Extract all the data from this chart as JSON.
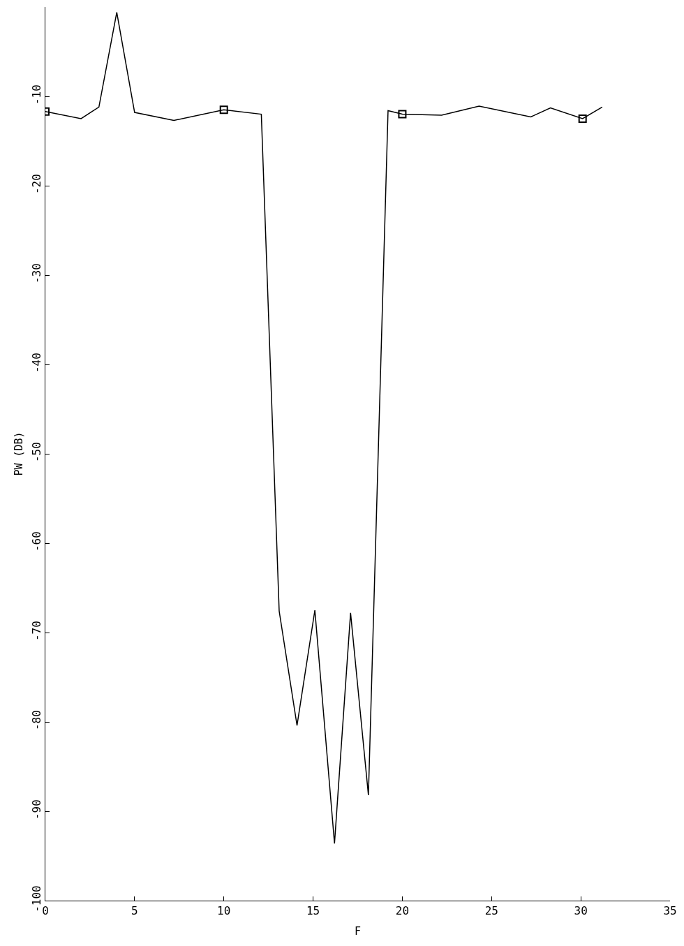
{
  "chart_data": {
    "type": "line",
    "xlabel": "F",
    "ylabel": "PW (DB)",
    "xlim": [
      0,
      35
    ],
    "xticks": [
      0,
      5,
      10,
      15,
      20,
      25,
      30,
      35
    ],
    "ylim": [
      -100,
      0
    ],
    "yticks": [
      -100,
      -90,
      -80,
      -70,
      -60,
      -50,
      -40,
      -30,
      -20,
      -10
    ],
    "series": [
      {
        "color": "#000000",
        "marker": "none",
        "line_style": "solid",
        "x": [
          0,
          2.0,
          3.0,
          4.0,
          5.0,
          7.2,
          10.0,
          12.1,
          13.1,
          14.1,
          15.1,
          16.2,
          17.1,
          18.1,
          19.2,
          20.0,
          22.2,
          24.3,
          27.2,
          28.3,
          30.1,
          31.2
        ],
        "values": [
          -11.7,
          -12.5,
          -11.2,
          -0.6,
          -11.8,
          -12.7,
          -11.5,
          -12.0,
          -67.6,
          -80.4,
          -67.5,
          -93.6,
          -67.8,
          -88.2,
          -11.6,
          -12.0,
          -12.1,
          -11.1,
          -12.3,
          -11.3,
          -12.5,
          -11.2
        ]
      },
      {
        "type": "scatter",
        "color": "#000000",
        "marker": "square",
        "x": [
          0,
          10.0,
          20.0,
          30.1
        ],
        "values": [
          -11.7,
          -11.5,
          -12.0,
          -12.5
        ]
      }
    ]
  }
}
